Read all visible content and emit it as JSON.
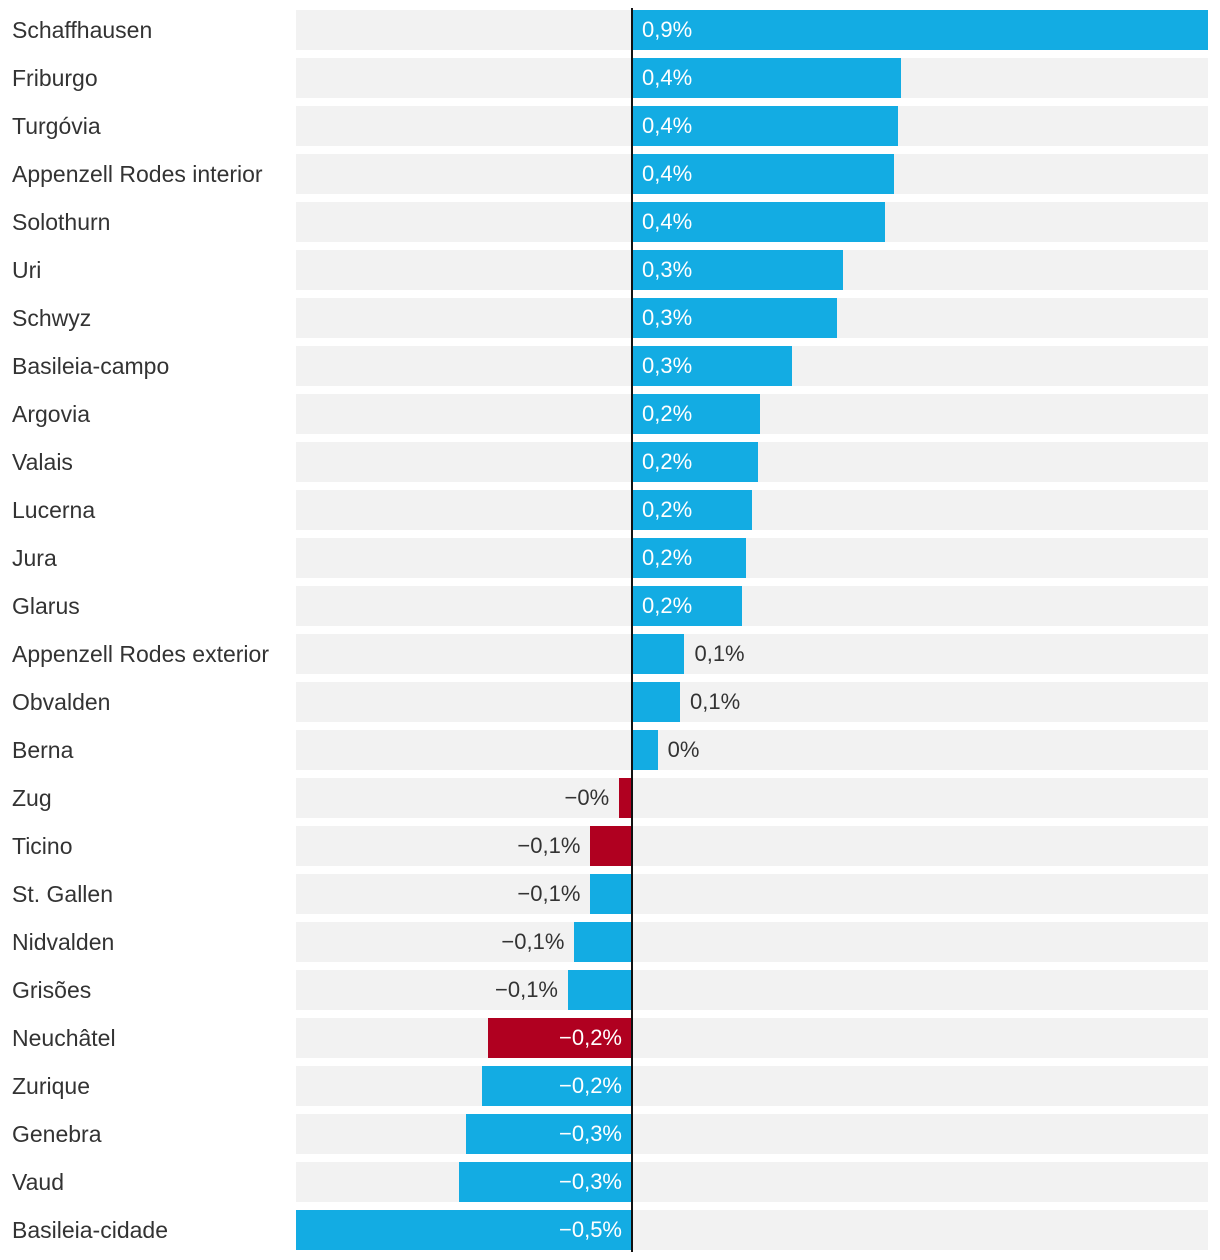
{
  "chart_data": {
    "type": "bar",
    "orientation": "horizontal",
    "title": "",
    "xlabel": "",
    "ylabel": "",
    "xlim": [
      -0.5,
      0.9
    ],
    "colors": {
      "positive": "#13ace3",
      "highlight": "#b00020",
      "track": "#f2f2f2"
    },
    "categories": [
      "Schaffhausen",
      "Friburgo",
      "Turgóvia",
      "Appenzell Rodes interior",
      "Solothurn",
      "Uri",
      "Schwyz",
      "Basileia-campo",
      "Argovia",
      "Valais",
      "Lucerna",
      "Jura",
      "Glarus",
      "Appenzell Rodes exterior",
      "Obvalden",
      "Berna",
      "Zug",
      "Ticino",
      "St. Gallen",
      "Nidvalden",
      "Grisões",
      "Neuchâtel",
      "Zurique",
      "Genebra",
      "Vaud",
      "Basileia-cidade"
    ],
    "values": [
      0.9,
      0.42,
      0.415,
      0.41,
      0.395,
      0.33,
      0.32,
      0.25,
      0.2,
      0.197,
      0.188,
      0.178,
      0.172,
      0.082,
      0.075,
      0.04,
      -0.02,
      -0.065,
      -0.065,
      -0.09,
      -0.1,
      -0.225,
      -0.235,
      -0.26,
      -0.27,
      -0.525
    ],
    "value_labels": [
      "0,9%",
      "0,4%",
      "0,4%",
      "0,4%",
      "0,4%",
      "0,3%",
      "0,3%",
      "0,3%",
      "0,2%",
      "0,2%",
      "0,2%",
      "0,2%",
      "0,2%",
      "0,1%",
      "0,1%",
      "0%",
      "−0%",
      "−0,1%",
      "−0,1%",
      "−0,1%",
      "−0,1%",
      "−0,2%",
      "−0,2%",
      "−0,3%",
      "−0,3%",
      "−0,5%"
    ],
    "highlighted": [
      "Zug",
      "Ticino",
      "Neuchâtel"
    ]
  }
}
